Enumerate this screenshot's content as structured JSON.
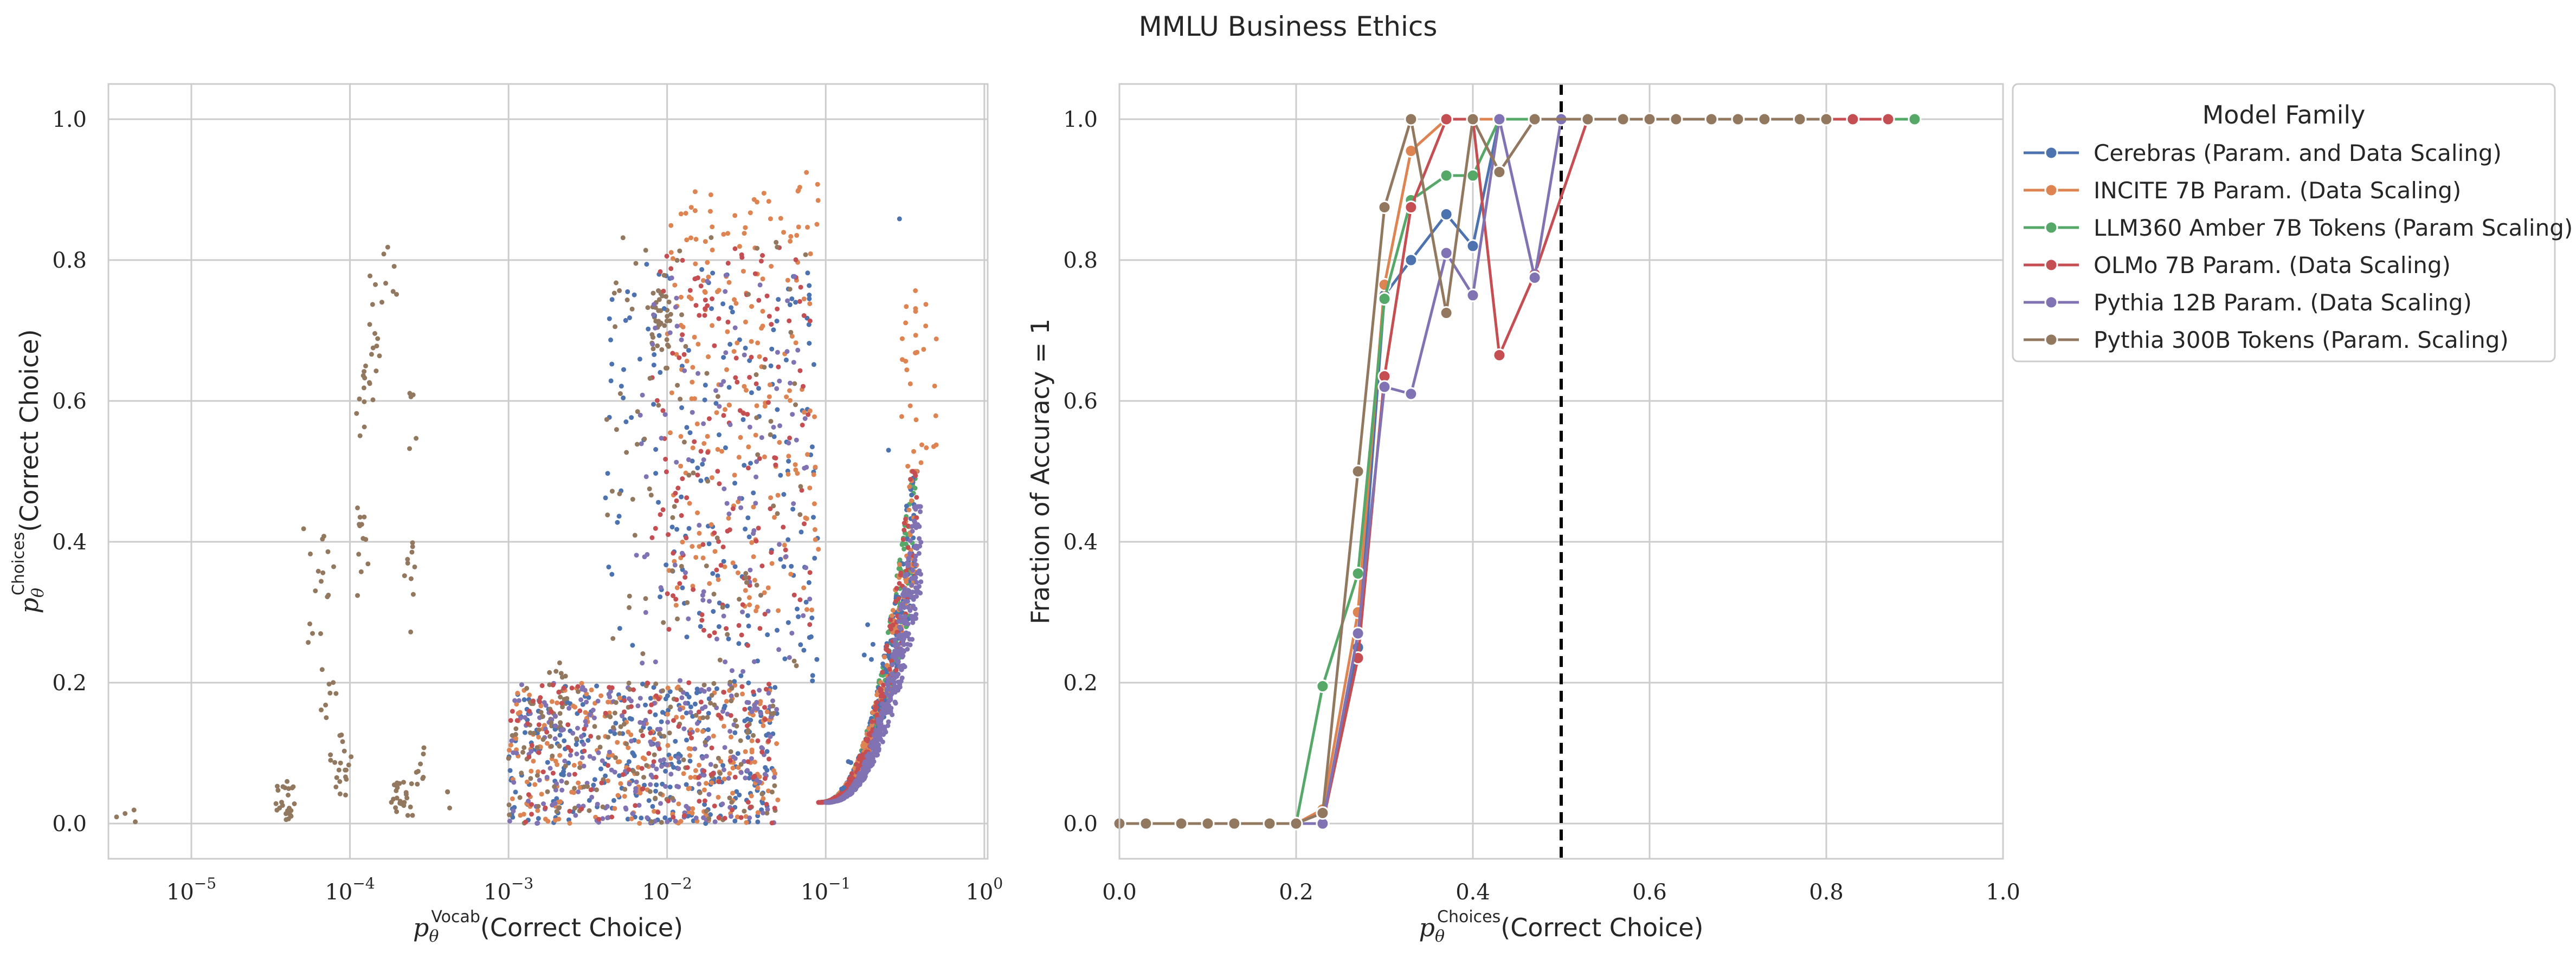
{
  "figure": {
    "title": "MMLU Business Ethics"
  },
  "legend": {
    "title": "Model Family",
    "placement": "upper-left-outside-right"
  },
  "chart_data": [
    {
      "type": "scatter",
      "panel": "left",
      "xlabel_sym": "p",
      "xlabel_sub": "θ",
      "xlabel_sup": "Vocab",
      "xlabel_rest": "(Correct Choice)",
      "ylabel_sym": "p",
      "ylabel_sub": "θ",
      "ylabel_sup": "Choices",
      "ylabel_rest": "(Correct Choice)",
      "xscale": "log",
      "xlim": [
        3e-06,
        1.05
      ],
      "ylim": [
        -0.05,
        1.05
      ],
      "xticks": [
        {
          "value": 1e-05,
          "base": "10",
          "exp": "−5"
        },
        {
          "value": 0.0001,
          "base": "10",
          "exp": "−4"
        },
        {
          "value": 0.001,
          "base": "10",
          "exp": "−3"
        },
        {
          "value": 0.01,
          "base": "10",
          "exp": "−2"
        },
        {
          "value": 0.1,
          "base": "10",
          "exp": "−1"
        },
        {
          "value": 1,
          "base": "10",
          "exp": "0"
        }
      ],
      "yticks": [
        {
          "value": 0.0,
          "label": "0.0"
        },
        {
          "value": 0.2,
          "label": "0.2"
        },
        {
          "value": 0.4,
          "label": "0.4"
        },
        {
          "value": 0.6,
          "label": "0.6"
        },
        {
          "value": 0.8,
          "label": "0.8"
        },
        {
          "value": 1.0,
          "label": "1.0"
        }
      ],
      "grid": true,
      "point_clusters": [
        {
          "series": 5,
          "x": [
            3.3e-05,
            4.5e-05
          ],
          "y": [
            0.0,
            0.06
          ],
          "n": 25
        },
        {
          "series": 5,
          "x": [
            7.5e-05,
            0.000105
          ],
          "y": [
            0.04,
            0.13
          ],
          "n": 20
        },
        {
          "series": 5,
          "x": [
            0.00011,
            0.00013
          ],
          "y": [
            0.28,
            0.46
          ],
          "n": 12
        },
        {
          "series": 5,
          "x": [
            0.00011,
            0.00013
          ],
          "y": [
            0.55,
            0.65
          ],
          "n": 10
        },
        {
          "series": 5,
          "x": [
            0.00013,
            0.00016
          ],
          "y": [
            0.6,
            0.8
          ],
          "n": 15
        },
        {
          "series": 5,
          "x": [
            0.00016,
            0.0002
          ],
          "y": [
            0.72,
            0.82
          ],
          "n": 6
        },
        {
          "series": 5,
          "x": [
            0.00018,
            0.00025
          ],
          "y": [
            0.01,
            0.06
          ],
          "n": 24
        },
        {
          "series": 5,
          "x": [
            0.00022,
            0.00026
          ],
          "y": [
            0.26,
            0.4
          ],
          "n": 10
        },
        {
          "series": 5,
          "x": [
            0.00023,
            0.00027
          ],
          "y": [
            0.52,
            0.62
          ],
          "n": 5
        },
        {
          "series": 5,
          "x": [
            0.00026,
            0.0003
          ],
          "y": [
            0.05,
            0.12
          ],
          "n": 8
        },
        {
          "series": 5,
          "x": [
            5e-05,
            8e-05
          ],
          "y": [
            0.25,
            0.42
          ],
          "n": 16
        },
        {
          "series": 5,
          "x": [
            6.5e-05,
            8.5e-05
          ],
          "y": [
            0.15,
            0.22
          ],
          "n": 8
        },
        {
          "series": 5,
          "x": [
            0.0018,
            0.0023
          ],
          "y": [
            0.13,
            0.23
          ],
          "n": 26
        },
        {
          "series": 5,
          "x": [
            0.008,
            0.0105
          ],
          "y": [
            0.67,
            0.76
          ],
          "n": 34
        },
        {
          "series": 5,
          "x": [
            3e-06,
            4.5e-06
          ],
          "y": [
            0.0,
            0.02
          ],
          "n": 4
        },
        {
          "series": 5,
          "x": [
            0.0004,
            0.0005
          ],
          "y": [
            0.02,
            0.05
          ],
          "n": 3
        },
        {
          "series": 0,
          "x": [
            0.001,
            0.05
          ],
          "y": [
            0.0,
            0.2
          ],
          "n": 260
        },
        {
          "series": 1,
          "x": [
            0.001,
            0.05
          ],
          "y": [
            0.0,
            0.2
          ],
          "n": 230
        },
        {
          "series": 4,
          "x": [
            0.001,
            0.05
          ],
          "y": [
            0.0,
            0.2
          ],
          "n": 230
        },
        {
          "series": 5,
          "x": [
            0.001,
            0.05
          ],
          "y": [
            0.0,
            0.2
          ],
          "n": 140
        },
        {
          "series": 3,
          "x": [
            0.001,
            0.05
          ],
          "y": [
            0.0,
            0.2
          ],
          "n": 120
        },
        {
          "series": 0,
          "x": [
            0.004,
            0.09
          ],
          "y": [
            0.2,
            0.8
          ],
          "n": 180
        },
        {
          "series": 1,
          "x": [
            0.01,
            0.09
          ],
          "y": [
            0.3,
            0.9
          ],
          "n": 200
        },
        {
          "series": 3,
          "x": [
            0.008,
            0.08
          ],
          "y": [
            0.25,
            0.82
          ],
          "n": 140
        },
        {
          "series": 4,
          "x": [
            0.006,
            0.08
          ],
          "y": [
            0.2,
            0.78
          ],
          "n": 100
        },
        {
          "series": 5,
          "x": [
            0.004,
            0.08
          ],
          "y": [
            0.2,
            0.85
          ],
          "n": 90
        },
        {
          "series": 2,
          "x": [
            0.09,
            0.38
          ],
          "y": [
            0.03,
            0.5
          ],
          "n": 320
        },
        {
          "series": 0,
          "x": [
            0.09,
            0.38
          ],
          "y": [
            0.03,
            0.5
          ],
          "n": 300
        },
        {
          "series": 1,
          "x": [
            0.09,
            0.38
          ],
          "y": [
            0.03,
            0.5
          ],
          "n": 220
        },
        {
          "series": 3,
          "x": [
            0.09,
            0.38
          ],
          "y": [
            0.03,
            0.5
          ],
          "n": 200
        },
        {
          "series": 4,
          "x": [
            0.1,
            0.4
          ],
          "y": [
            0.02,
            0.45
          ],
          "n": 520
        },
        {
          "series": 1,
          "x": [
            0.3,
            0.5
          ],
          "y": [
            0.5,
            0.76
          ],
          "n": 30
        },
        {
          "series": 0,
          "x": [
            0.1,
            0.3
          ],
          "y": [
            0.8,
            0.93
          ],
          "n": 10
        },
        {
          "series": 1,
          "x": [
            0.05,
            0.09
          ],
          "y": [
            0.82,
            0.93
          ],
          "n": 8
        }
      ]
    },
    {
      "type": "line",
      "panel": "right",
      "xlabel_sym": "p",
      "xlabel_sub": "θ",
      "xlabel_sup": "Choices",
      "xlabel_rest": "(Correct Choice)",
      "ylabel": "Fraction of Accuracy = 1",
      "xlim": [
        0.0,
        1.0
      ],
      "ylim": [
        -0.05,
        1.05
      ],
      "xticks": [
        {
          "value": 0.0,
          "label": "0.0"
        },
        {
          "value": 0.2,
          "label": "0.2"
        },
        {
          "value": 0.4,
          "label": "0.4"
        },
        {
          "value": 0.6,
          "label": "0.6"
        },
        {
          "value": 0.8,
          "label": "0.8"
        },
        {
          "value": 1.0,
          "label": "1.0"
        }
      ],
      "yticks": [
        {
          "value": 0.0,
          "label": "0.0"
        },
        {
          "value": 0.2,
          "label": "0.2"
        },
        {
          "value": 0.4,
          "label": "0.4"
        },
        {
          "value": 0.6,
          "label": "0.6"
        },
        {
          "value": 0.8,
          "label": "0.8"
        },
        {
          "value": 1.0,
          "label": "1.0"
        }
      ],
      "grid": true,
      "vline": {
        "x": 0.5,
        "style": "dashed",
        "color": "#000000"
      },
      "series": [
        {
          "name": "Cerebras (Param. and Data Scaling)",
          "color": "#4c72b0",
          "x": [
            0.0,
            0.03,
            0.07,
            0.1,
            0.13,
            0.17,
            0.2,
            0.23,
            0.27,
            0.3,
            0.33,
            0.37,
            0.4,
            0.43,
            0.47,
            0.5
          ],
          "y": [
            0.0,
            0.0,
            0.0,
            0.0,
            0.0,
            0.0,
            0.0,
            0.0,
            0.25,
            0.75,
            0.8,
            0.865,
            0.82,
            1.0,
            1.0,
            1.0
          ]
        },
        {
          "name": "INCITE 7B Param. (Data Scaling)",
          "color": "#dd8452",
          "x": [
            0.0,
            0.03,
            0.07,
            0.1,
            0.13,
            0.17,
            0.2,
            0.23,
            0.27,
            0.3,
            0.33,
            0.37,
            0.4,
            0.43,
            0.47,
            0.5,
            0.53,
            0.57
          ],
          "y": [
            0.0,
            0.0,
            0.0,
            0.0,
            0.0,
            0.0,
            0.0,
            0.02,
            0.3,
            0.765,
            0.955,
            1.0,
            1.0,
            1.0,
            1.0,
            1.0,
            1.0,
            1.0
          ]
        },
        {
          "name": "LLM360 Amber 7B Tokens (Param Scaling)",
          "color": "#55a868",
          "x": [
            0.0,
            0.03,
            0.07,
            0.1,
            0.13,
            0.17,
            0.2,
            0.23,
            0.27,
            0.3,
            0.33,
            0.37,
            0.4,
            0.43,
            0.47,
            0.5,
            0.53,
            0.57,
            0.6,
            0.63,
            0.67,
            0.7,
            0.73,
            0.77,
            0.8,
            0.83,
            0.87,
            0.9
          ],
          "y": [
            0.0,
            0.0,
            0.0,
            0.0,
            0.0,
            0.0,
            0.0,
            0.195,
            0.355,
            0.745,
            0.885,
            0.92,
            0.92,
            1.0,
            1.0,
            1.0,
            1.0,
            1.0,
            1.0,
            1.0,
            1.0,
            1.0,
            1.0,
            1.0,
            1.0,
            1.0,
            1.0,
            1.0
          ]
        },
        {
          "name": "OLMo 7B Param. (Data Scaling)",
          "color": "#c44e52",
          "x": [
            0.0,
            0.03,
            0.07,
            0.1,
            0.13,
            0.17,
            0.2,
            0.23,
            0.27,
            0.3,
            0.33,
            0.37,
            0.4,
            0.43,
            0.47,
            0.53,
            0.57,
            0.6,
            0.63,
            0.67,
            0.7,
            0.73,
            0.77,
            0.8,
            0.83,
            0.87
          ],
          "y": [
            0.0,
            0.0,
            0.0,
            0.0,
            0.0,
            0.0,
            0.0,
            0.0,
            0.235,
            0.635,
            0.875,
            1.0,
            1.0,
            0.665,
            0.78,
            1.0,
            1.0,
            1.0,
            1.0,
            1.0,
            1.0,
            1.0,
            1.0,
            1.0,
            1.0,
            1.0
          ]
        },
        {
          "name": "Pythia 12B Param. (Data Scaling)",
          "color": "#8172b3",
          "x": [
            0.0,
            0.03,
            0.07,
            0.1,
            0.13,
            0.17,
            0.2,
            0.23,
            0.27,
            0.3,
            0.33,
            0.37,
            0.4,
            0.43,
            0.47,
            0.5
          ],
          "y": [
            0.0,
            0.0,
            0.0,
            0.0,
            0.0,
            0.0,
            0.0,
            0.0,
            0.27,
            0.62,
            0.61,
            0.81,
            0.75,
            1.0,
            0.775,
            1.0
          ]
        },
        {
          "name": "Pythia 300B Tokens (Param. Scaling)",
          "color": "#937860",
          "x": [
            0.0,
            0.03,
            0.07,
            0.1,
            0.13,
            0.17,
            0.2,
            0.23,
            0.27,
            0.3,
            0.33,
            0.37,
            0.4,
            0.43,
            0.47,
            0.53,
            0.57,
            0.6,
            0.63,
            0.67,
            0.7,
            0.73,
            0.77,
            0.8
          ],
          "y": [
            0.0,
            0.0,
            0.0,
            0.0,
            0.0,
            0.0,
            0.0,
            0.015,
            0.5,
            0.875,
            1.0,
            0.725,
            1.0,
            0.925,
            1.0,
            1.0,
            1.0,
            1.0,
            1.0,
            1.0,
            1.0,
            1.0,
            1.0,
            1.0
          ]
        }
      ]
    }
  ]
}
